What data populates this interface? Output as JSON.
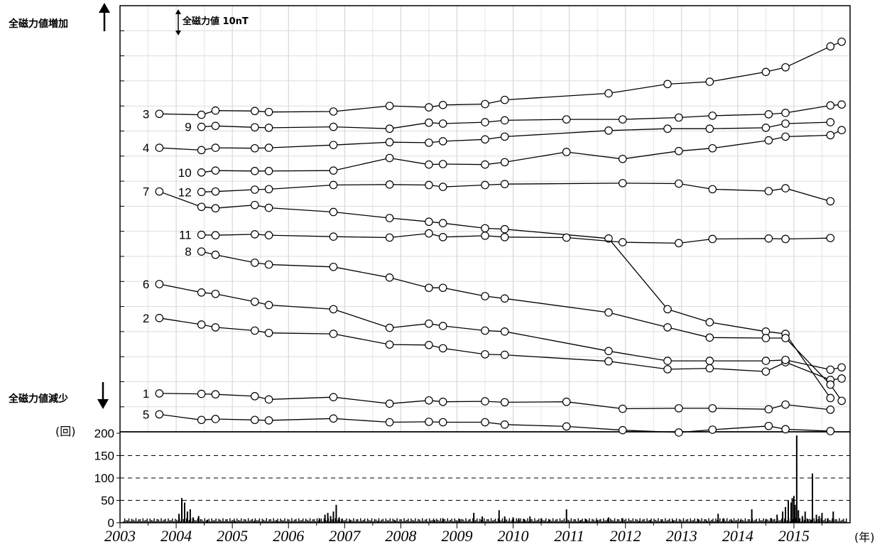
{
  "labels": {
    "increase": "全磁力値増加",
    "decrease": "全磁力値減少",
    "scale": "全磁力値 10nT",
    "count_unit": "(回)",
    "year_unit": "(年)"
  },
  "chart_data": [
    {
      "type": "line",
      "title": "",
      "xlabel": "",
      "ylabel": "",
      "xlim": [
        2003,
        2016
      ],
      "x_ticks": [
        "2003",
        "2004",
        "2005",
        "2006",
        "2007",
        "2008",
        "2009",
        "2010",
        "2011",
        "2012",
        "2013",
        "2014",
        "2015"
      ],
      "grid": true,
      "scale_bar": "全磁力値 10nT",
      "series": [
        {
          "name": "1",
          "x": [
            2003.7,
            2004.45,
            2004.7,
            2005.4,
            2005.65,
            2006.8,
            2007.8,
            2008.5,
            2008.75,
            2009.5,
            2009.85,
            2010.95,
            2011.95,
            2012.95,
            2013.55,
            2014.55,
            2014.85,
            2015.65
          ],
          "y": [
            -23.5,
            -23.6,
            -23.7,
            -24.1,
            -24.8,
            -24.3,
            -25.7,
            -25.0,
            -25.3,
            -25.2,
            -25.4,
            -25.3,
            -26.8,
            -26.7,
            -26.7,
            -26.9,
            -25.9,
            -27.0
          ]
        },
        {
          "name": "2",
          "x": [
            2003.7,
            2004.45,
            2004.7,
            2005.4,
            2005.65,
            2006.8,
            2007.8,
            2008.5,
            2008.75,
            2009.5,
            2009.85,
            2011.7,
            2012.75,
            2013.5,
            2014.5,
            2014.85,
            2015.65,
            2015.85
          ],
          "y": [
            -7.3,
            -8.7,
            -9.3,
            -10.0,
            -10.5,
            -10.7,
            -13.0,
            -13.1,
            -13.8,
            -15.1,
            -15.2,
            -16.6,
            -18.3,
            -18.1,
            -18.8,
            -16.8,
            -20.6,
            -20.3
          ]
        },
        {
          "name": "3",
          "x": [
            2003.7,
            2004.45,
            2004.7,
            2005.4,
            2005.65,
            2006.8,
            2007.8,
            2008.5,
            2008.75,
            2009.5,
            2009.85,
            2011.7,
            2012.75,
            2013.5,
            2014.5,
            2014.85,
            2015.65,
            2015.85
          ],
          "y": [
            36.6,
            36.4,
            37.3,
            37.2,
            37.0,
            37.1,
            38.3,
            38.0,
            38.5,
            38.7,
            39.6,
            41.0,
            43.0,
            43.5,
            45.6,
            46.6,
            51.1,
            52.1
          ]
        },
        {
          "name": "4",
          "x": [
            2003.7,
            2004.45,
            2004.7,
            2005.4,
            2005.65,
            2006.8,
            2007.8,
            2008.5,
            2008.75,
            2009.5,
            2009.85,
            2011.7,
            2012.75,
            2013.5,
            2014.5,
            2014.85,
            2015.65
          ],
          "y": [
            29.3,
            28.8,
            29.3,
            29.2,
            29.3,
            29.9,
            30.5,
            30.4,
            30.7,
            31.1,
            31.7,
            33.0,
            33.4,
            33.4,
            33.6,
            34.5,
            34.8
          ]
        },
        {
          "name": "5",
          "x": [
            2003.7,
            2004.45,
            2004.7,
            2005.4,
            2005.65,
            2006.8,
            2007.8,
            2008.5,
            2008.75,
            2009.5,
            2009.85,
            2010.95,
            2011.95,
            2012.95,
            2013.55,
            2014.55,
            2014.85,
            2015.65
          ],
          "y": [
            -28.0,
            -29.2,
            -29.0,
            -29.2,
            -29.3,
            -28.9,
            -29.7,
            -29.6,
            -29.7,
            -29.7,
            -30.2,
            -30.6,
            -31.4,
            -31.9,
            -31.3,
            -30.5,
            -31.2,
            -31.6
          ]
        },
        {
          "name": "6",
          "x": [
            2003.7,
            2004.45,
            2004.7,
            2005.4,
            2005.65,
            2006.8,
            2007.8,
            2008.5,
            2008.75,
            2009.5,
            2009.85,
            2011.7,
            2012.75,
            2013.5,
            2014.5,
            2014.85,
            2015.65,
            2015.85
          ],
          "y": [
            0.0,
            -1.8,
            -2.1,
            -3.8,
            -4.5,
            -5.4,
            -9.4,
            -8.5,
            -9.0,
            -10.0,
            -10.2,
            -14.4,
            -16.5,
            -16.5,
            -16.5,
            -16.3,
            -18.4,
            -17.9
          ]
        },
        {
          "name": "7",
          "x": [
            2003.7,
            2004.45,
            2004.7,
            2005.4,
            2005.65,
            2006.8,
            2007.8,
            2008.5,
            2008.75,
            2009.5,
            2009.85,
            2011.7,
            2012.75,
            2013.5,
            2014.5,
            2014.85,
            2015.65
          ],
          "y": [
            19.9,
            16.6,
            16.3,
            17.0,
            16.4,
            15.5,
            14.2,
            13.4,
            13.1,
            12.0,
            11.8,
            9.8,
            -5.4,
            -8.2,
            -10.2,
            -10.7,
            -24.5
          ]
        },
        {
          "name": "8",
          "x": [
            2004.45,
            2004.7,
            2005.4,
            2005.65,
            2006.8,
            2007.8,
            2008.5,
            2008.75,
            2009.5,
            2009.85,
            2011.7,
            2012.75,
            2013.5,
            2014.5,
            2014.85,
            2015.65,
            2015.85
          ],
          "y": [
            7.0,
            6.3,
            4.6,
            4.2,
            3.7,
            1.4,
            -0.8,
            -0.8,
            -2.6,
            -3.1,
            -6.1,
            -9.3,
            -11.5,
            -11.6,
            -11.6,
            -21.6,
            -25.1
          ]
        },
        {
          "name": "9",
          "x": [
            2004.45,
            2004.7,
            2005.4,
            2005.65,
            2006.8,
            2007.8,
            2008.5,
            2008.75,
            2009.5,
            2009.85,
            2010.95,
            2011.95,
            2012.95,
            2013.55,
            2014.55,
            2014.85,
            2015.65,
            2015.85
          ],
          "y": [
            33.8,
            34.0,
            33.7,
            33.6,
            33.8,
            33.4,
            34.7,
            34.5,
            34.8,
            35.2,
            35.4,
            35.4,
            35.8,
            36.2,
            36.5,
            36.8,
            38.4,
            38.6
          ]
        },
        {
          "name": "10",
          "x": [
            2004.45,
            2004.7,
            2005.4,
            2005.65,
            2006.8,
            2007.8,
            2008.5,
            2008.75,
            2009.5,
            2009.85,
            2010.95,
            2011.95,
            2012.95,
            2013.55,
            2014.55,
            2014.85,
            2015.65,
            2015.85
          ],
          "y": [
            24.0,
            24.4,
            24.3,
            24.3,
            24.4,
            27.1,
            25.7,
            25.8,
            25.7,
            26.2,
            28.4,
            26.9,
            28.6,
            29.2,
            30.9,
            31.7,
            32.0,
            33.1
          ]
        },
        {
          "name": "11",
          "x": [
            2004.45,
            2004.7,
            2005.4,
            2005.65,
            2006.8,
            2007.8,
            2008.5,
            2008.75,
            2009.5,
            2009.85,
            2010.95,
            2011.95,
            2012.95,
            2013.55,
            2014.55,
            2014.85,
            2015.65
          ],
          "y": [
            10.6,
            10.5,
            10.7,
            10.5,
            10.2,
            10.0,
            10.9,
            10.1,
            10.4,
            10.1,
            10.0,
            9.0,
            8.8,
            9.7,
            9.8,
            9.7,
            9.9
          ]
        },
        {
          "name": "12",
          "x": [
            2004.45,
            2004.7,
            2005.4,
            2005.65,
            2006.8,
            2007.8,
            2008.5,
            2008.75,
            2009.5,
            2009.85,
            2011.95,
            2012.95,
            2013.55,
            2014.55,
            2014.85,
            2015.65
          ],
          "y": [
            19.8,
            19.9,
            20.3,
            20.4,
            21.3,
            21.4,
            21.3,
            20.9,
            21.3,
            21.5,
            21.7,
            21.6,
            20.4,
            20.0,
            20.6,
            17.8
          ]
        }
      ]
    },
    {
      "type": "bar",
      "title": "",
      "xlabel": "",
      "ylabel": "(回)",
      "ylim": [
        0,
        200
      ],
      "y_ticks": [
        "0",
        "50",
        "100",
        "150",
        "200"
      ],
      "grid": "dashed at 50, 100, 150",
      "x": [
        2004.05,
        2004.1,
        2004.15,
        2004.2,
        2004.25,
        2004.3,
        2004.4,
        2004.55,
        2005.05,
        2005.4,
        2005.8,
        2006.55,
        2006.65,
        2006.7,
        2006.75,
        2006.8,
        2006.85,
        2006.9,
        2006.95,
        2007.1,
        2007.6,
        2007.9,
        2008.6,
        2008.75,
        2009.05,
        2009.3,
        2009.45,
        2009.75,
        2009.85,
        2010.0,
        2010.1,
        2010.2,
        2010.3,
        2010.5,
        2010.65,
        2010.95,
        2011.2,
        2011.3,
        2011.5,
        2011.7,
        2011.95,
        2012.25,
        2012.45,
        2012.65,
        2012.85,
        2013.3,
        2013.45,
        2013.65,
        2013.75,
        2013.9,
        2014.05,
        2014.25,
        2014.5,
        2014.6,
        2014.7,
        2014.8,
        2014.85,
        2014.9,
        2014.95,
        2014.97,
        2015.0,
        2015.02,
        2015.05,
        2015.08,
        2015.1,
        2015.15,
        2015.2,
        2015.25,
        2015.3,
        2015.33,
        2015.4,
        2015.45,
        2015.5,
        2015.6,
        2015.7
      ],
      "values": [
        20,
        55,
        45,
        25,
        30,
        12,
        15,
        6,
        4,
        5,
        3,
        10,
        18,
        22,
        15,
        25,
        40,
        12,
        8,
        5,
        4,
        5,
        6,
        10,
        8,
        22,
        14,
        28,
        14,
        12,
        10,
        8,
        14,
        10,
        6,
        30,
        5,
        8,
        6,
        12,
        10,
        4,
        6,
        4,
        5,
        8,
        4,
        20,
        10,
        5,
        6,
        30,
        8,
        10,
        18,
        25,
        35,
        50,
        45,
        55,
        60,
        40,
        195,
        28,
        10,
        15,
        25,
        8,
        5,
        110,
        18,
        15,
        22,
        10,
        25
      ]
    }
  ]
}
